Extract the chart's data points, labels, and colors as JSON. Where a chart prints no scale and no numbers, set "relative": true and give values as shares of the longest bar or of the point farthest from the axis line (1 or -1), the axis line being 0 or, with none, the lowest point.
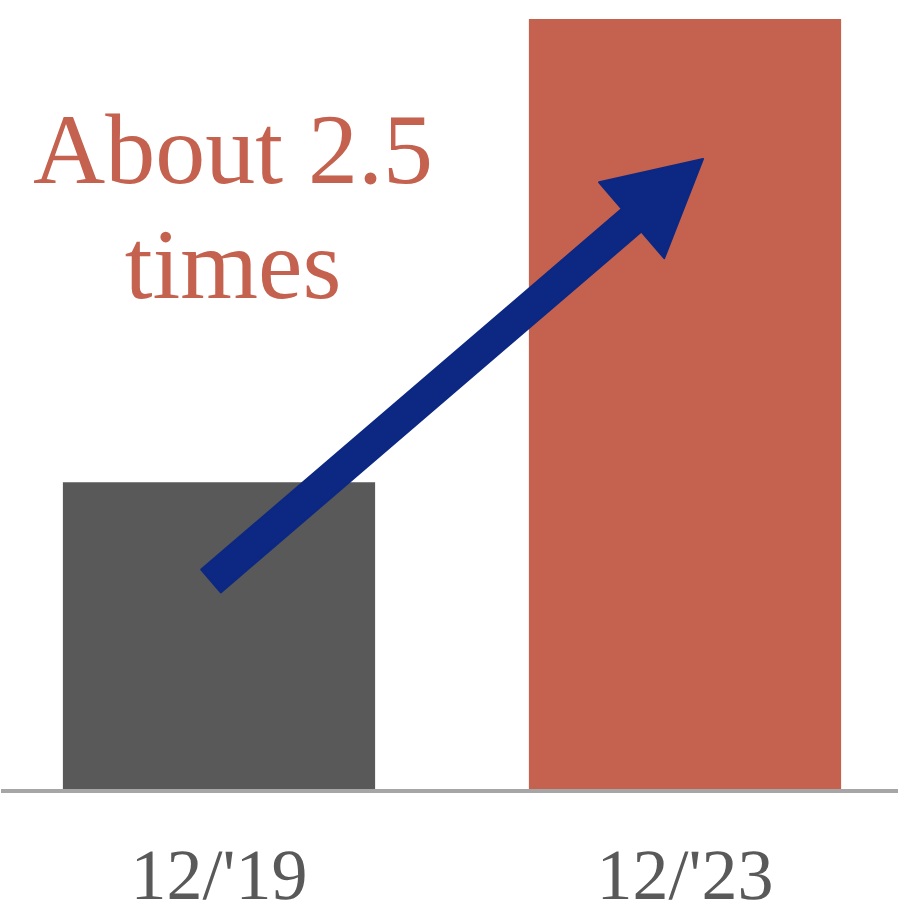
{
  "chart_data": {
    "type": "bar",
    "categories": [
      "12/'19",
      "12/'23"
    ],
    "values": [
      0.4,
      1
    ],
    "colors": [
      "#595959",
      "#c4624f"
    ],
    "relative": true,
    "annotations": [
      "About 2.5 times"
    ]
  }
}
